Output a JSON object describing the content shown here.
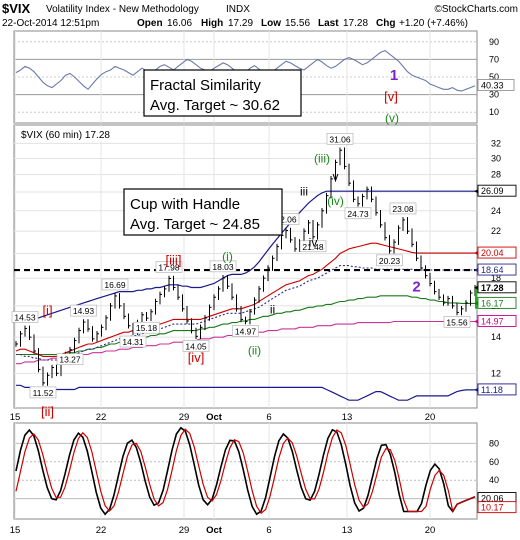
{
  "header": {
    "symbol": "$VIX",
    "name": "Volatility Index - New Methodology",
    "exchange": "INDX",
    "stamp": "©StockCharts.com",
    "datetime": "22-Oct-2014 12:51pm",
    "open_label": "Open",
    "open": "16.06",
    "high_label": "High",
    "high": "17.29",
    "low_label": "Low",
    "low": "15.56",
    "last_label": "Last",
    "last": "17.28",
    "chg_label": "Chg",
    "chg": "+1.20 (+7.46%)"
  },
  "top_panel": {
    "ticks": [
      "90",
      "70",
      "50",
      "30",
      "10"
    ],
    "ticks_shown": [
      90,
      70,
      50,
      30,
      10
    ],
    "last_value_label": "40.33",
    "last_value": 40.33,
    "values": [
      55,
      58,
      62,
      60,
      56,
      50,
      44,
      40,
      38,
      42,
      46,
      52,
      54,
      50,
      45,
      40,
      36,
      42,
      48,
      53,
      56,
      58,
      62,
      60,
      58,
      55,
      52,
      56,
      60,
      57,
      54,
      58,
      62,
      64,
      61,
      58,
      62,
      66,
      70,
      68,
      64,
      60,
      58,
      56,
      60,
      63,
      66,
      64,
      60,
      56,
      52,
      55,
      60,
      63,
      59,
      55,
      52,
      56,
      60,
      64,
      68,
      66,
      63,
      60,
      58,
      62,
      66,
      70,
      67,
      63,
      60,
      62,
      66,
      70,
      72,
      70,
      67,
      64,
      66,
      70,
      74,
      78,
      80,
      76,
      72,
      68,
      62,
      56,
      52,
      50,
      48,
      46,
      42,
      40,
      38,
      36,
      36,
      38,
      35,
      34,
      36,
      38,
      40
    ],
    "annotation_line1": "Fractal Similarity",
    "annotation_line2": "Avg. Target ~ 30.62"
  },
  "chart_data": {
    "type": "line",
    "title": "$VIX (60 min) 17.28",
    "series_name": "$VIX (60 min)",
    "y_scale": "log",
    "y_ticks": [
      12,
      14,
      16,
      18,
      20,
      22,
      24,
      26,
      28,
      30,
      32
    ],
    "x_ticks": [
      "15",
      "22",
      "29",
      "Oct",
      "6",
      "13",
      "20"
    ],
    "price": [
      13.6,
      14.2,
      14.53,
      14.0,
      13.2,
      12.2,
      11.52,
      11.9,
      12.3,
      12.0,
      12.6,
      13.0,
      13.27,
      13.8,
      14.4,
      14.93,
      14.5,
      13.9,
      14.2,
      14.6,
      15.2,
      16.0,
      16.69,
      16.0,
      15.3,
      14.7,
      14.31,
      14.9,
      15.4,
      15.18,
      15.6,
      16.3,
      16.8,
      17.2,
      17.98,
      17.3,
      16.6,
      15.8,
      15.0,
      14.4,
      14.05,
      14.6,
      15.2,
      15.9,
      16.6,
      17.2,
      18.03,
      17.4,
      16.6,
      15.8,
      15.1,
      14.97,
      15.6,
      16.4,
      17.2,
      18.0,
      18.8,
      19.6,
      20.6,
      21.6,
      22.06,
      21.2,
      20.4,
      21.0,
      22.0,
      22.8,
      21.48,
      22.6,
      24.0,
      25.6,
      27.5,
      29.5,
      31.06,
      29.0,
      27.0,
      25.2,
      24.73,
      25.5,
      26.3,
      25.2,
      23.8,
      22.6,
      21.4,
      20.23,
      21.0,
      22.3,
      23.08,
      22.0,
      20.8,
      19.6,
      18.8,
      18.2,
      17.6,
      17.0,
      16.6,
      16.2,
      16.5,
      16.0,
      15.56,
      15.8,
      16.2,
      16.9,
      17.28
    ],
    "upper_band": [
      15.0,
      15.0,
      15.0,
      15.1,
      15.1,
      15.2,
      15.3,
      15.4,
      15.5,
      15.6,
      15.7,
      15.8,
      15.9,
      16.0,
      16.1,
      16.2,
      16.3,
      16.4,
      16.5,
      16.6,
      16.7,
      16.8,
      16.9,
      17.0,
      17.0,
      17.0,
      17.0,
      17.1,
      17.1,
      17.2,
      17.2,
      17.3,
      17.3,
      17.4,
      17.5,
      17.5,
      17.5,
      17.4,
      17.4,
      17.3,
      17.3,
      17.3,
      17.4,
      17.5,
      17.6,
      17.8,
      18.0,
      18.2,
      18.3,
      18.3,
      18.3,
      18.4,
      18.6,
      18.9,
      19.3,
      19.8,
      20.3,
      20.8,
      21.3,
      21.8,
      22.3,
      22.8,
      23.3,
      23.8,
      24.3,
      24.8,
      25.2,
      25.6,
      25.9,
      26.09,
      26.09,
      26.09,
      26.09,
      26.09,
      26.09,
      26.09,
      26.09,
      26.09,
      26.09,
      26.09,
      26.09,
      26.09,
      26.09,
      26.09,
      26.09,
      26.09,
      26.09,
      26.09,
      26.09,
      26.09,
      26.09,
      26.09,
      26.09,
      26.09,
      26.09,
      26.09,
      26.09,
      26.09,
      26.09,
      26.09,
      26.09,
      26.09,
      26.09
    ],
    "red_ma": [
      13.2,
      13.3,
      13.3,
      13.2,
      13.1,
      13.0,
      12.9,
      12.9,
      12.9,
      12.9,
      13.0,
      13.1,
      13.2,
      13.3,
      13.4,
      13.5,
      13.6,
      13.6,
      13.7,
      13.8,
      13.9,
      14.0,
      14.1,
      14.2,
      14.3,
      14.3,
      14.4,
      14.4,
      14.5,
      14.5,
      14.6,
      14.7,
      14.8,
      14.9,
      15.0,
      15.1,
      15.1,
      15.1,
      15.1,
      15.1,
      15.1,
      15.1,
      15.2,
      15.3,
      15.4,
      15.5,
      15.6,
      15.7,
      15.8,
      15.8,
      15.8,
      15.9,
      16.0,
      16.1,
      16.3,
      16.5,
      16.7,
      16.9,
      17.1,
      17.3,
      17.5,
      17.6,
      17.7,
      17.8,
      18.0,
      18.2,
      18.3,
      18.5,
      18.7,
      19.0,
      19.3,
      19.6,
      20.0,
      20.2,
      20.4,
      20.5,
      20.6,
      20.7,
      20.8,
      20.9,
      20.9,
      20.8,
      20.7,
      20.6,
      20.5,
      20.4,
      20.3,
      20.2,
      20.1,
      20.04,
      20.04,
      20.04,
      20.04,
      20.04,
      20.04,
      20.04,
      20.04,
      20.04,
      20.04,
      20.04,
      20.04,
      20.04,
      20.04
    ],
    "green_ma": [
      13.0,
      13.0,
      13.0,
      13.0,
      13.0,
      13.0,
      13.0,
      13.0,
      13.0,
      13.0,
      13.0,
      13.1,
      13.1,
      13.1,
      13.2,
      13.2,
      13.3,
      13.3,
      13.4,
      13.4,
      13.5,
      13.6,
      13.6,
      13.7,
      13.8,
      13.8,
      13.9,
      13.9,
      14.0,
      14.0,
      14.1,
      14.1,
      14.2,
      14.2,
      14.3,
      14.4,
      14.4,
      14.4,
      14.4,
      14.4,
      14.4,
      14.5,
      14.5,
      14.6,
      14.6,
      14.7,
      14.8,
      14.8,
      14.9,
      14.9,
      15.0,
      15.0,
      15.1,
      15.1,
      15.2,
      15.3,
      15.3,
      15.4,
      15.5,
      15.5,
      15.6,
      15.6,
      15.7,
      15.7,
      15.8,
      15.9,
      15.9,
      16.0,
      16.0,
      16.1,
      16.1,
      16.2,
      16.3,
      16.3,
      16.4,
      16.4,
      16.5,
      16.5,
      16.6,
      16.6,
      16.6,
      16.7,
      16.7,
      16.7,
      16.7,
      16.7,
      16.7,
      16.7,
      16.6,
      16.6,
      16.5,
      16.5,
      16.4,
      16.4,
      16.3,
      16.3,
      16.2,
      16.2,
      16.2,
      16.17,
      16.17,
      16.17,
      16.17
    ],
    "pink_ma": [
      12.5,
      12.5,
      12.6,
      12.6,
      12.6,
      12.7,
      12.7,
      12.7,
      12.8,
      12.8,
      12.8,
      12.9,
      12.9,
      12.9,
      13.0,
      13.0,
      13.0,
      13.1,
      13.1,
      13.1,
      13.2,
      13.2,
      13.2,
      13.3,
      13.3,
      13.3,
      13.4,
      13.4,
      13.4,
      13.5,
      13.5,
      13.5,
      13.6,
      13.6,
      13.6,
      13.7,
      13.7,
      13.7,
      13.8,
      13.8,
      13.8,
      13.9,
      13.9,
      13.9,
      14.0,
      14.0,
      14.0,
      14.1,
      14.1,
      14.1,
      14.2,
      14.2,
      14.2,
      14.3,
      14.3,
      14.3,
      14.4,
      14.4,
      14.4,
      14.5,
      14.5,
      14.5,
      14.5,
      14.6,
      14.6,
      14.6,
      14.6,
      14.7,
      14.7,
      14.7,
      14.7,
      14.8,
      14.8,
      14.8,
      14.8,
      14.8,
      14.9,
      14.9,
      14.9,
      14.9,
      14.9,
      14.9,
      14.9,
      14.9,
      14.97,
      14.97,
      14.97,
      14.97,
      14.97,
      14.97,
      14.97,
      14.97,
      14.97,
      14.97,
      14.97,
      14.97,
      14.97,
      14.97,
      14.97,
      14.97,
      14.97,
      14.97,
      14.97
    ],
    "dotted_ma": [
      13.0,
      13.0,
      12.9,
      12.9,
      12.8,
      12.8,
      12.7,
      12.7,
      12.7,
      12.7,
      12.8,
      12.8,
      12.9,
      13.0,
      13.1,
      13.2,
      13.3,
      13.3,
      13.4,
      13.5,
      13.6,
      13.7,
      13.8,
      13.9,
      14.0,
      14.0,
      14.1,
      14.1,
      14.2,
      14.3,
      14.3,
      14.4,
      14.5,
      14.6,
      14.7,
      14.8,
      14.8,
      14.8,
      14.8,
      14.8,
      14.8,
      14.9,
      15.0,
      15.1,
      15.2,
      15.3,
      15.4,
      15.5,
      15.5,
      15.5,
      15.5,
      15.6,
      15.7,
      15.8,
      15.9,
      16.1,
      16.3,
      16.5,
      16.7,
      16.9,
      17.1,
      17.2,
      17.3,
      17.4,
      17.6,
      17.8,
      17.9,
      18.0,
      18.2,
      18.4,
      18.6,
      18.8,
      19.0,
      19.0,
      19.0,
      18.9,
      18.9,
      18.8,
      18.8,
      18.8,
      18.7,
      18.7,
      18.7,
      18.7,
      18.7,
      18.7,
      18.7,
      18.7,
      18.7,
      18.64,
      18.64,
      18.64,
      18.64,
      18.64,
      18.64,
      18.64,
      18.64,
      18.64,
      18.64,
      18.64,
      18.64,
      18.64,
      18.64
    ],
    "lower_band": [
      11.4,
      11.4,
      11.3,
      11.3,
      11.3,
      11.2,
      11.2,
      11.2,
      11.2,
      11.2,
      11.2,
      11.2,
      11.2,
      11.2,
      11.3,
      11.3,
      11.3,
      11.3,
      11.3,
      11.3,
      11.3,
      11.3,
      11.3,
      11.3,
      11.3,
      11.3,
      11.3,
      11.3,
      11.3,
      11.3,
      11.3,
      11.3,
      11.3,
      11.3,
      11.3,
      11.3,
      11.3,
      11.3,
      11.3,
      11.3,
      11.3,
      11.3,
      11.3,
      11.3,
      11.3,
      11.3,
      11.3,
      11.3,
      11.3,
      11.3,
      11.3,
      11.3,
      11.3,
      11.3,
      11.3,
      11.3,
      11.3,
      11.3,
      11.3,
      11.3,
      11.3,
      11.3,
      11.3,
      11.3,
      11.3,
      11.3,
      11.3,
      11.3,
      11.3,
      11.2,
      11.1,
      11.0,
      10.9,
      10.8,
      10.7,
      10.7,
      10.7,
      10.8,
      10.9,
      11.0,
      11.1,
      11.1,
      11.0,
      10.9,
      10.8,
      10.7,
      10.7,
      10.7,
      10.8,
      10.9,
      10.9,
      10.9,
      10.9,
      10.9,
      10.9,
      10.9,
      10.9,
      11.0,
      11.1,
      11.15,
      11.18,
      11.18,
      11.18
    ],
    "right_labels": [
      {
        "text": "26.09",
        "value": 26.09,
        "color": "#000000",
        "bold": false
      },
      {
        "text": "20.04",
        "value": 20.04,
        "color": "#cc0000",
        "bold": false
      },
      {
        "text": "18.64",
        "value": 18.64,
        "color": "#2b2b88",
        "bold": false
      },
      {
        "text": "17.28",
        "value": 17.28,
        "color": "#000000",
        "bold": true
      },
      {
        "text": "16.17",
        "value": 16.17,
        "color": "#1a7a1a",
        "bold": false
      },
      {
        "text": "14.97",
        "value": 14.97,
        "color": "#cc0088",
        "bold": false
      },
      {
        "text": "11.18",
        "value": 11.18,
        "color": "#1a1a8a",
        "bold": false
      }
    ],
    "point_labels": [
      {
        "text": "14.53",
        "i": 2,
        "v": 14.53
      },
      {
        "text": "11.52",
        "i": 6,
        "v": 11.52
      },
      {
        "text": "13.27",
        "i": 12,
        "v": 13.27
      },
      {
        "text": "14.93",
        "i": 15,
        "v": 14.93
      },
      {
        "text": "16.69",
        "i": 22,
        "v": 16.69
      },
      {
        "text": "14.31",
        "i": 26,
        "v": 14.31
      },
      {
        "text": "15.18",
        "i": 29,
        "v": 15.18
      },
      {
        "text": "17.98",
        "i": 34,
        "v": 17.98
      },
      {
        "text": "14.05",
        "i": 40,
        "v": 14.05
      },
      {
        "text": "18.03",
        "i": 46,
        "v": 18.03
      },
      {
        "text": "14.97",
        "i": 51,
        "v": 14.97
      },
      {
        "text": "22.06",
        "i": 60,
        "v": 22.06
      },
      {
        "text": "21.48",
        "i": 66,
        "v": 21.48
      },
      {
        "text": "31.06",
        "i": 72,
        "v": 31.06
      },
      {
        "text": "24.73",
        "i": 76,
        "v": 24.73
      },
      {
        "text": "20.23",
        "i": 83,
        "v": 20.23
      },
      {
        "text": "23.08",
        "i": 86,
        "v": 23.08
      },
      {
        "text": "15.56",
        "i": 98,
        "v": 15.56
      }
    ],
    "wave_labels": [
      {
        "text": "[i]",
        "color": "#cc0000",
        "i": 7,
        "v": 15.4,
        "size": 13
      },
      {
        "text": "[ii]",
        "color": "#cc0000",
        "i": 7,
        "v": 10.0,
        "size": 13
      },
      {
        "text": "[iii]",
        "color": "#cc0000",
        "i": 35,
        "v": 19.1,
        "size": 13
      },
      {
        "text": "[iv]",
        "color": "#cc0000",
        "i": 40,
        "v": 12.6,
        "size": 13
      },
      {
        "text": "(i)",
        "color": "#1a8a1a",
        "i": 47,
        "v": 19.4,
        "size": 12
      },
      {
        "text": "(ii)",
        "color": "#1a8a1a",
        "i": 53,
        "v": 13.0,
        "size": 12
      },
      {
        "text": "i",
        "color": "#000000",
        "i": 59,
        "v": 23.6,
        "size": 12
      },
      {
        "text": "ii",
        "color": "#000000",
        "i": 57,
        "v": 15.5,
        "size": 12
      },
      {
        "text": "iii",
        "color": "#000000",
        "i": 64,
        "v": 25.6,
        "size": 12
      },
      {
        "text": "iv",
        "color": "#000000",
        "i": 66,
        "v": 20.6,
        "size": 12
      },
      {
        "text": "(iii)",
        "color": "#1a8a1a",
        "i": 68,
        "v": 29.5,
        "size": 12
      },
      {
        "text": "v",
        "color": "#000000",
        "i": 71,
        "v": 27.3,
        "size": 12
      },
      {
        "text": "(iv)",
        "color": "#1a8a1a",
        "i": 71,
        "v": 24.6,
        "size": 12
      },
      {
        "text": "2",
        "color": "#7a22cc",
        "i": 89,
        "v": 17.0,
        "size": 15
      }
    ],
    "dashed_line_value": 18.64,
    "annotation_line1": "Cup with Handle",
    "annotation_line2": "Avg. Target ~ 24.85"
  },
  "top_wave_labels": [
    {
      "text": "1",
      "color": "#7a22cc"
    },
    {
      "text": "[v]",
      "color": "#cc0000"
    },
    {
      "text": "(v)",
      "color": "#1a8a1a"
    }
  ],
  "bottom_panel": {
    "ticks": [
      "80",
      "60",
      "40",
      "20"
    ],
    "ticks_shown": [
      80,
      60,
      40,
      20
    ],
    "label_fast": "20.06",
    "label_slow": "10.17",
    "value_fast": 20.06,
    "value_slow": 10.17,
    "x_ticks": [
      "15",
      "22",
      "29",
      "Oct",
      "6",
      "13",
      "20"
    ]
  }
}
